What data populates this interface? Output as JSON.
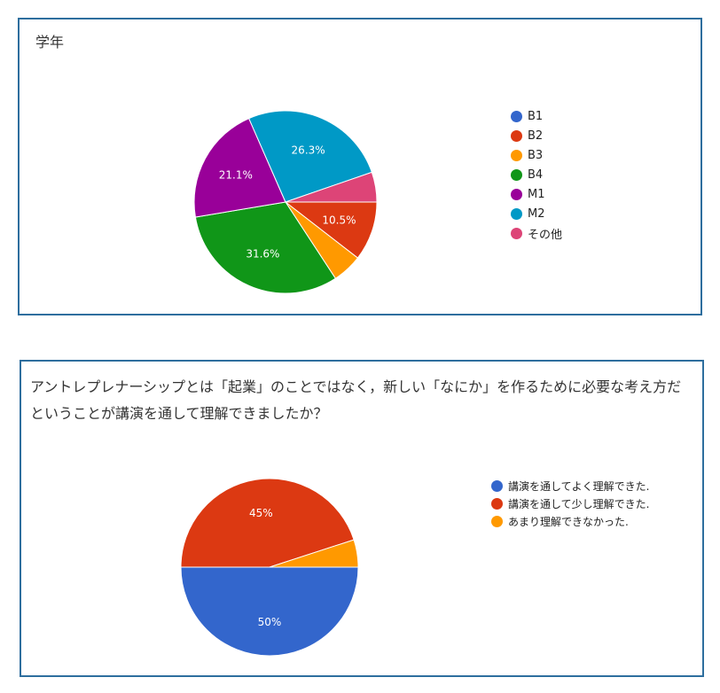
{
  "chart_data": [
    {
      "type": "pie",
      "title": "学年",
      "categories": [
        "B1",
        "B2",
        "B3",
        "B4",
        "M1",
        "M2",
        "その他"
      ],
      "values": [
        0,
        10.5,
        5.3,
        31.6,
        21.1,
        26.3,
        5.3
      ],
      "colors": [
        "#3366cc",
        "#dc3912",
        "#ff9900",
        "#109618",
        "#990099",
        "#0099c6",
        "#dd4477"
      ],
      "slice_labels": [
        "",
        "10.5%",
        "",
        "31.6%",
        "21.1%",
        "26.3%",
        ""
      ],
      "legend": "right"
    },
    {
      "type": "pie",
      "title": "アントレプレナーシップとは「起業」のことではなく，新しい「なにか」を作るために必要な考え方だということが講演を通して理解できましたか？",
      "categories": [
        "講演を通してよく理解できた.",
        "講演を通して少し理解できた.",
        "あまり理解できなかった."
      ],
      "values": [
        50,
        45,
        5
      ],
      "colors": [
        "#3366cc",
        "#dc3912",
        "#ff9900"
      ],
      "slice_labels": [
        "50%",
        "45%",
        ""
      ],
      "legend": "right"
    }
  ]
}
